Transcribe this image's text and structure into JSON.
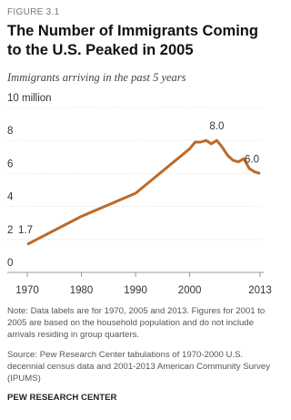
{
  "chart_data": {
    "type": "line",
    "figure_label": "FIGURE 3.1",
    "title": "The Number of Immigrants Coming to the U.S. Peaked in 2005",
    "subtitle": "Immigrants arriving in the past 5 years",
    "x": [
      1970,
      1980,
      1990,
      2000,
      2001,
      2002,
      2003,
      2004,
      2005,
      2006,
      2007,
      2008,
      2009,
      2010,
      2011,
      2012,
      2013
    ],
    "series": [
      {
        "name": "Immigrants arriving in the past 5 years",
        "color": "#bd6a28",
        "values": [
          1.7,
          3.4,
          4.8,
          7.5,
          7.9,
          7.9,
          8.0,
          7.8,
          8.0,
          7.6,
          7.1,
          6.8,
          6.7,
          6.9,
          6.3,
          6.1,
          6.0
        ],
        "value_labels": [
          "1.7",
          null,
          null,
          null,
          null,
          null,
          null,
          null,
          "8.0",
          null,
          null,
          null,
          null,
          null,
          null,
          null,
          "6.0"
        ]
      }
    ],
    "xlim": [
      1970,
      2013
    ],
    "xticks": [
      1970,
      1980,
      1990,
      2000,
      2013
    ],
    "ylim": [
      0,
      10
    ],
    "yticks": [
      0,
      2,
      4,
      6,
      8,
      {
        "value": 10,
        "label": "10 million"
      }
    ],
    "grid": true,
    "note": "Note: Data labels are for 1970, 2005 and 2013. Figures for 2001 to 2005 are based on the household population and do not include arrivals residing in group quarters.",
    "source": "Source: Pew Research Center tabulations of 1970-2000 U.S. decennial census data and 2001-2013 American Community Survey (IPUMS)",
    "credit": "PEW RESEARCH CENTER"
  }
}
